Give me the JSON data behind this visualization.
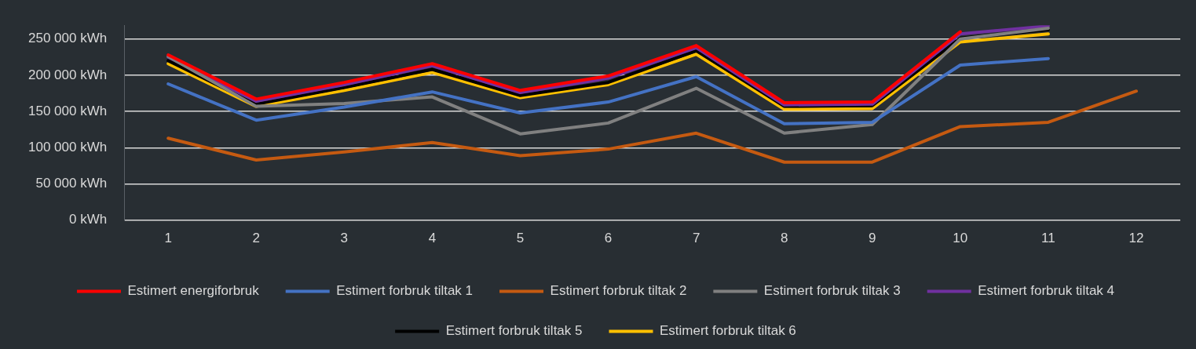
{
  "chart_data": {
    "type": "line",
    "categories": [
      "1",
      "2",
      "3",
      "4",
      "5",
      "6",
      "7",
      "8",
      "9",
      "10",
      "11",
      "12"
    ],
    "series": [
      {
        "name": "Estimert energiforbruk",
        "color": "#ff0000",
        "values": [
          228000,
          167000,
          190000,
          216000,
          179000,
          199000,
          241000,
          162000,
          163000,
          260000,
          null,
          null
        ]
      },
      {
        "name": "Estimert forbruk tiltak 1",
        "color": "#4472c4",
        "values": [
          188000,
          138000,
          156000,
          177000,
          148000,
          163000,
          198000,
          133000,
          135000,
          214000,
          223000,
          null
        ]
      },
      {
        "name": "Estimert forbruk tiltak 2",
        "color": "#c55a11",
        "values": [
          113000,
          83000,
          94000,
          107000,
          89000,
          98000,
          120000,
          80000,
          80000,
          129000,
          135000,
          178000
        ]
      },
      {
        "name": "Estimert forbruk tiltak 3",
        "color": "#808080",
        "values": [
          226000,
          157000,
          161000,
          170000,
          119000,
          134000,
          182000,
          120000,
          132000,
          250000,
          265000,
          null
        ]
      },
      {
        "name": "Estimert forbruk tiltak 4",
        "color": "#7030a0",
        "values": [
          225000,
          164000,
          187000,
          213000,
          176000,
          196000,
          238000,
          159000,
          160000,
          257000,
          268000,
          null
        ]
      },
      {
        "name": "Estimert forbruk tiltak 5",
        "color": "#000000",
        "values": [
          220000,
          160000,
          183000,
          208000,
          172000,
          190000,
          234000,
          157000,
          158000,
          251000,
          263000,
          null
        ]
      },
      {
        "name": "Estimert forbruk tiltak 6",
        "color": "#ffc000",
        "values": [
          216000,
          157000,
          179000,
          204000,
          169000,
          187000,
          229000,
          153000,
          154000,
          246000,
          257000,
          null
        ]
      }
    ],
    "ylim": [
      0,
      269000
    ],
    "yticks": [
      {
        "value": 0,
        "label": "0 kWh"
      },
      {
        "value": 50000,
        "label": "50 000 kWh"
      },
      {
        "value": 100000,
        "label": "100 000 kWh"
      },
      {
        "value": 150000,
        "label": "150 000 kWh"
      },
      {
        "value": 200000,
        "label": "200 000 kWh"
      },
      {
        "value": 250000,
        "label": "250 000 kWh"
      }
    ],
    "grid": "y",
    "legend": "bottom",
    "marker": "none",
    "line_style": "solid"
  }
}
